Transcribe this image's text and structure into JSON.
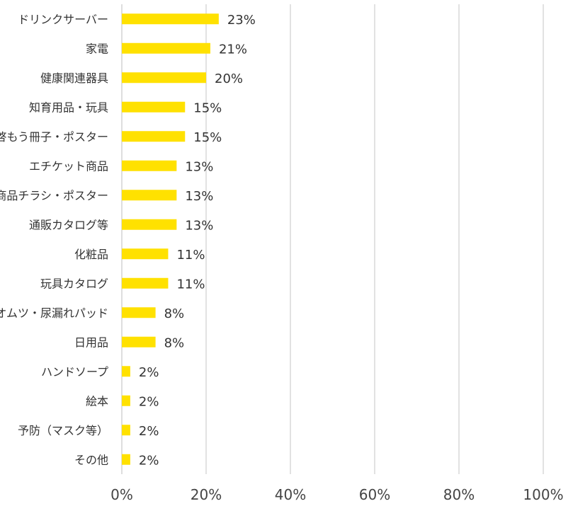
{
  "chart_data": {
    "type": "bar",
    "orientation": "horizontal",
    "categories": [
      "ドリンクサーバー",
      "家電",
      "健康関連器具",
      "知育用品・玩具",
      "啓もう冊子・ポスター",
      "エチケット商品",
      "商品チラシ・ポスター",
      "通販カタログ等",
      "化粧品",
      "玩具カタログ",
      "オムツ・尿漏れパッド",
      "日用品",
      "ハンドソープ",
      "絵本",
      "予防（マスク等）",
      "その他"
    ],
    "values": [
      23,
      21,
      20,
      15,
      15,
      13,
      13,
      13,
      11,
      11,
      8,
      8,
      2,
      2,
      2,
      2
    ],
    "value_labels": [
      "23%",
      "21%",
      "20%",
      "15%",
      "15%",
      "13%",
      "13%",
      "13%",
      "11%",
      "11%",
      "8%",
      "8%",
      "2%",
      "2%",
      "2%",
      "2%"
    ],
    "xlim": [
      0,
      100
    ],
    "xticks": [
      "0%",
      "20%",
      "40%",
      "60%",
      "80%",
      "100%"
    ],
    "grid": true,
    "bar_color": "#FFE100",
    "grid_color": "#D9D9D9",
    "title": "",
    "xlabel": "",
    "ylabel": ""
  }
}
